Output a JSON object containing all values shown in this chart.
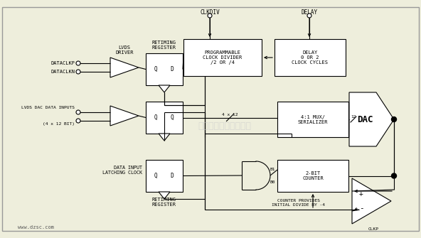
{
  "bg_color": "#eeeedc",
  "line_color": "#000000",
  "box_color": "#ffffff",
  "watermark": "杭州特睿科技有限公司",
  "dataclkp_label": "DATACLKP",
  "dataclkn_label": "DATACLKN",
  "lvds_driver_label": "LVDS\nDRIVER",
  "retiming_reg_label": "RETIMING\nREGISTER",
  "clkdiv_label": "CLKDIV",
  "delay_label": "DELAY",
  "prog_clk_label": "PROGRAMMABLE\nCLOCK DIVIDER\n/2 OR /4",
  "delay_box_label": "DELAY\n0 OR 2\nCLOCK CYCLES",
  "lvds_data_label": "LVDS DAC DATA INPUTS",
  "lvds_data_label2": "(4 x 12 BIT)",
  "data_latch_label": "DATA INPUT\nLATCHING CLOCK",
  "mux_label": "4:1 MUX/\nSERIALIZER",
  "counter_label": "2-BIT\nCOUNTER",
  "dac_label": "DAC",
  "counter_note": "COUNTER PROVIDES\nINITIAL DIVIDE BY -4",
  "clkp_label": "CLKP",
  "bus_label": "4 x 12",
  "bit12_label": "12",
  "b1_label": "B1",
  "b0_label": "B0"
}
